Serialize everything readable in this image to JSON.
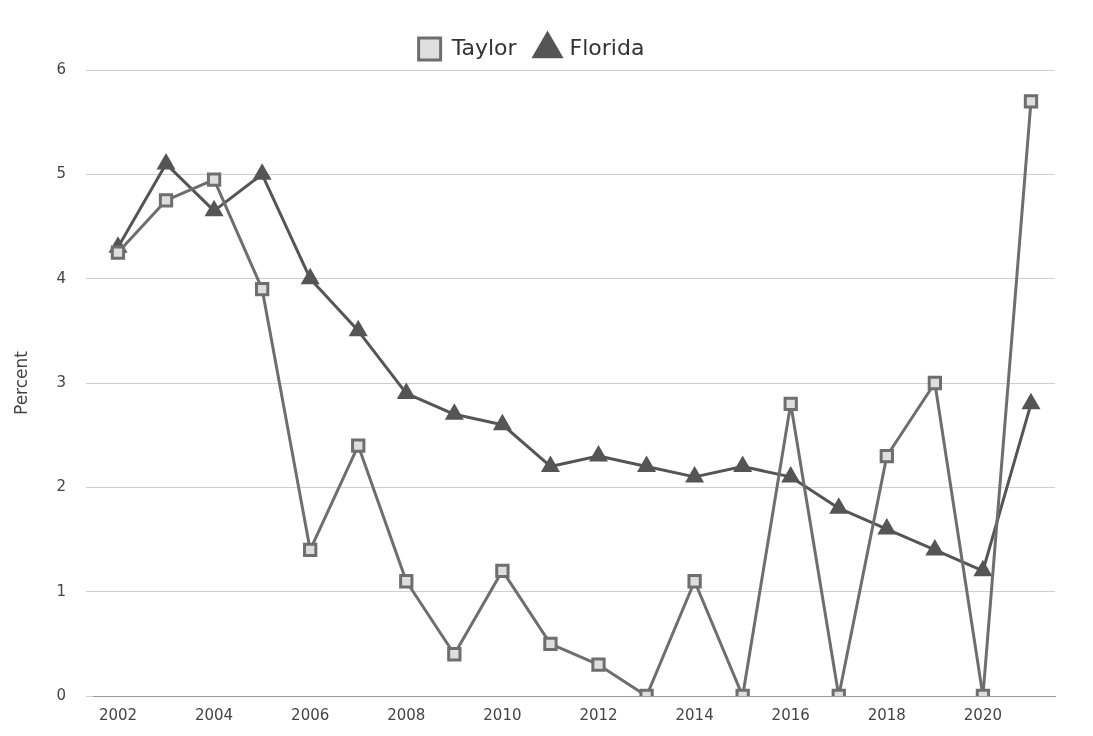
{
  "chart_data": {
    "type": "line",
    "ylabel": "Percent",
    "categories": [
      "2002",
      null,
      "2004",
      null,
      "2006",
      null,
      "2008",
      null,
      "2010",
      null,
      "2012",
      null,
      "2014",
      null,
      "2016",
      null,
      "2018",
      null,
      "2020",
      null
    ],
    "series": [
      {
        "name": "Taylor",
        "color": "#6e6e6e",
        "marker": "square",
        "values": [
          4.25,
          4.75,
          4.95,
          3.9,
          1.4,
          2.4,
          1.1,
          0.4,
          1.2,
          0.5,
          0.3,
          0,
          1.1,
          0,
          2.8,
          0,
          2.3,
          3.0,
          0,
          5.7
        ]
      },
      {
        "name": "Florida",
        "color": "#555555",
        "marker": "triangle",
        "values": [
          4.3,
          5.1,
          4.65,
          5.0,
          4.0,
          3.5,
          2.9,
          2.7,
          2.6,
          2.2,
          2.3,
          2.2,
          2.1,
          2.2,
          2.1,
          1.8,
          1.6,
          1.4,
          1.2,
          2.8
        ]
      }
    ],
    "ylim": [
      0,
      6
    ],
    "yticks": [
      0,
      1,
      2,
      3,
      4,
      5,
      6
    ],
    "grid": "y",
    "legend": "top"
  }
}
